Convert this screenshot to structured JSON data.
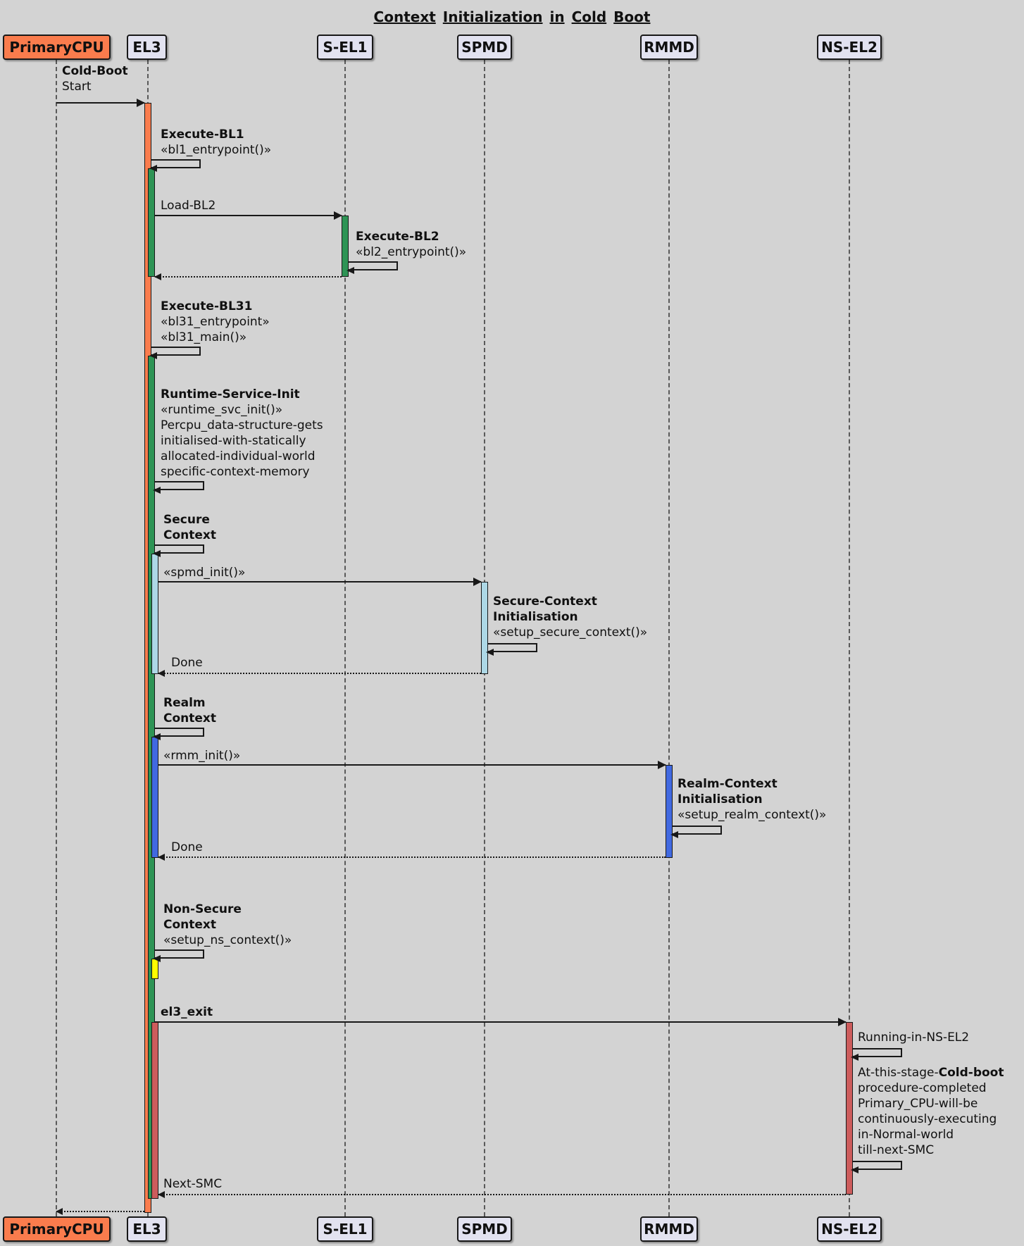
{
  "title": "Context Initialization in Cold Boot",
  "colors": {
    "bg": "#d3d3d3",
    "pfill": "#e2e2f0",
    "coral": "#fa7c4d",
    "green": "#2e9455",
    "lblue": "#add8e6",
    "rblue": "#4169e1",
    "yellow": "#ffff00",
    "ired": "#cd5c5c",
    "border": "#181818",
    "lifeline": "#5a5a5a",
    "text": "#101010"
  },
  "participants": {
    "primarycpu": {
      "label": "PrimaryCPU"
    },
    "el3": {
      "label": "EL3"
    },
    "sel1": {
      "label": "S-EL1"
    },
    "spmd": {
      "label": "SPMD"
    },
    "rmmd": {
      "label": "RMMD"
    },
    "nsel2": {
      "label": "NS-EL2"
    }
  },
  "messages": {
    "cold_boot": {
      "line1": "Cold-Boot",
      "line2": "Start"
    },
    "execute_bl1": {
      "title": "Execute-BL1",
      "stereotype": "«bl1_entrypoint()»"
    },
    "load_bl2": {
      "label": "Load-BL2"
    },
    "execute_bl2": {
      "title": "Execute-BL2",
      "stereotype": "«bl2_entrypoint()»"
    },
    "execute_bl31": {
      "title": "Execute-BL31",
      "stereotype1": "«bl31_entrypoint»",
      "stereotype2": "«bl31_main()»"
    },
    "runtime_service_init": {
      "title": "Runtime-Service-Init",
      "stereotype": "«runtime_svc_init()»",
      "line3": "Percpu_data-structure-gets",
      "line4": "initialised-with-statically",
      "line5": "allocated-individual-world",
      "line6": "specific-context-memory"
    },
    "secure_context": {
      "line1": "Secure",
      "line2": "Context"
    },
    "spmd_init": {
      "label": "«spmd_init()»"
    },
    "secure_context_init": {
      "title1": "Secure-Context",
      "title2": "Initialisation",
      "stereotype": "«setup_secure_context()»"
    },
    "done_secure": {
      "label": "Done"
    },
    "realm_context": {
      "line1": "Realm",
      "line2": "Context"
    },
    "rmm_init": {
      "label": "«rmm_init()»"
    },
    "realm_context_init": {
      "title1": "Realm-Context",
      "title2": "Initialisation",
      "stereotype": "«setup_realm_context()»"
    },
    "done_realm": {
      "label": "Done"
    },
    "non_secure_context": {
      "title1": "Non-Secure",
      "title2": "Context",
      "stereotype": "«setup_ns_context()»"
    },
    "el3_exit": {
      "label": "el3_exit"
    },
    "running_in_nsel2": {
      "label": "Running-in-NS-EL2"
    },
    "cold_boot_complete": {
      "line1_prefix": "At-this-stage-",
      "line1_bold": "Cold-boot",
      "line2": "procedure-completed",
      "line3": "Primary_CPU-will-be",
      "line4": "continuously-executing",
      "line5": "in-Normal-world",
      "line6": "till-next-SMC"
    },
    "next_smc": {
      "label": "Next-SMC"
    }
  }
}
